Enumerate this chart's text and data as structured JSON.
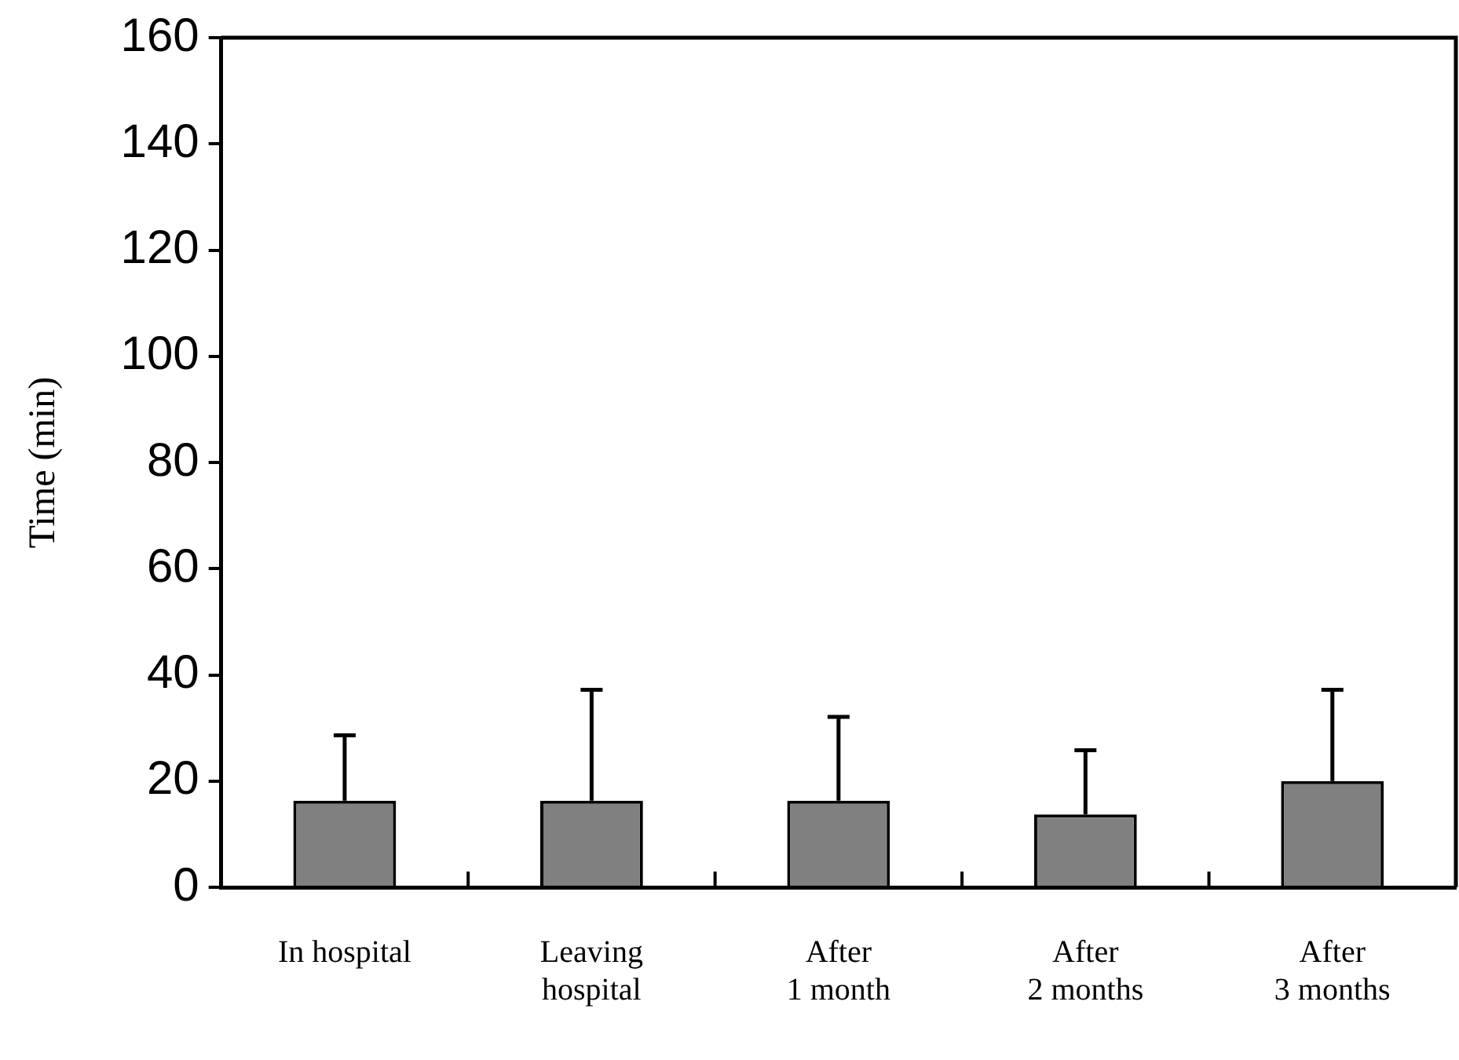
{
  "chart_data": {
    "type": "bar",
    "ylabel": "Time (min)",
    "categories": [
      "In hospital",
      "Leaving\nhospital",
      "After\n1 month",
      "After\n2 months",
      "After\n3 months"
    ],
    "values": [
      16.3,
      16.3,
      16.3,
      13.7,
      20
    ],
    "errors": [
      [
        16.3,
        28.6
      ],
      [
        16.3,
        37.2
      ],
      [
        16.3,
        32.1
      ],
      [
        13.7,
        25.8
      ],
      [
        20,
        37.2
      ]
    ],
    "color": "#808080",
    "ylim": [
      0,
      160
    ],
    "yticks": [
      0,
      20,
      40,
      60,
      80,
      100,
      120,
      140,
      160
    ],
    "grid": false,
    "legend": false
  }
}
